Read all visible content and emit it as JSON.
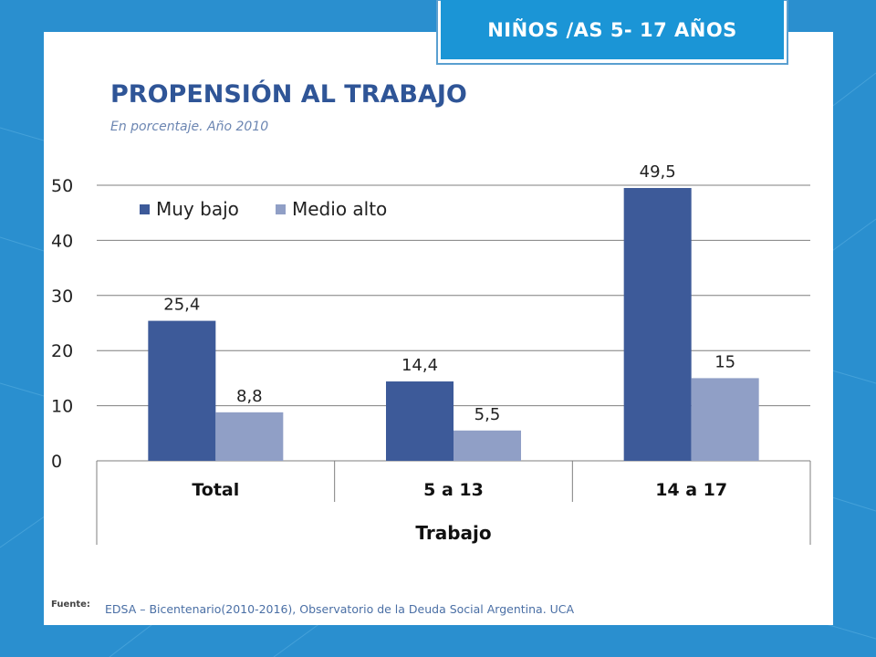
{
  "badge": {
    "label": "NIÑOS /AS 5- 17 AÑOS"
  },
  "header": {
    "title": "PROPENSIÓN AL TRABAJO",
    "subtitle": "En porcentaje. Año 2010"
  },
  "source": {
    "label": "Fuente:",
    "text": "EDSA – Bicentenario(2010-2016), Observatorio de la Deuda Social Argentina. UCA"
  },
  "colors": {
    "background": "#2a8fcf",
    "badge": "#1b95d6",
    "title": "#2f5597",
    "series_dark": "#3d5a99",
    "series_light": "#909fc6"
  },
  "chart_data": {
    "type": "bar",
    "title": "",
    "xlabel": "Trabajo",
    "ylabel": "",
    "categories": [
      "Total",
      "5 a 13",
      "14 a 17"
    ],
    "series": [
      {
        "name": "Muy bajo",
        "values": [
          25.4,
          14.4,
          49.5
        ],
        "labels": [
          "25,4",
          "14,4",
          "49,5"
        ],
        "color": "#3d5a99"
      },
      {
        "name": "Medio alto",
        "values": [
          8.8,
          5.5,
          15
        ],
        "labels": [
          "8,8",
          "5,5",
          "15"
        ],
        "color": "#909fc6"
      }
    ],
    "ylim": [
      0,
      50
    ],
    "yticks": [
      0,
      10,
      20,
      30,
      40,
      50
    ],
    "grid": true,
    "legend": "top-left"
  }
}
